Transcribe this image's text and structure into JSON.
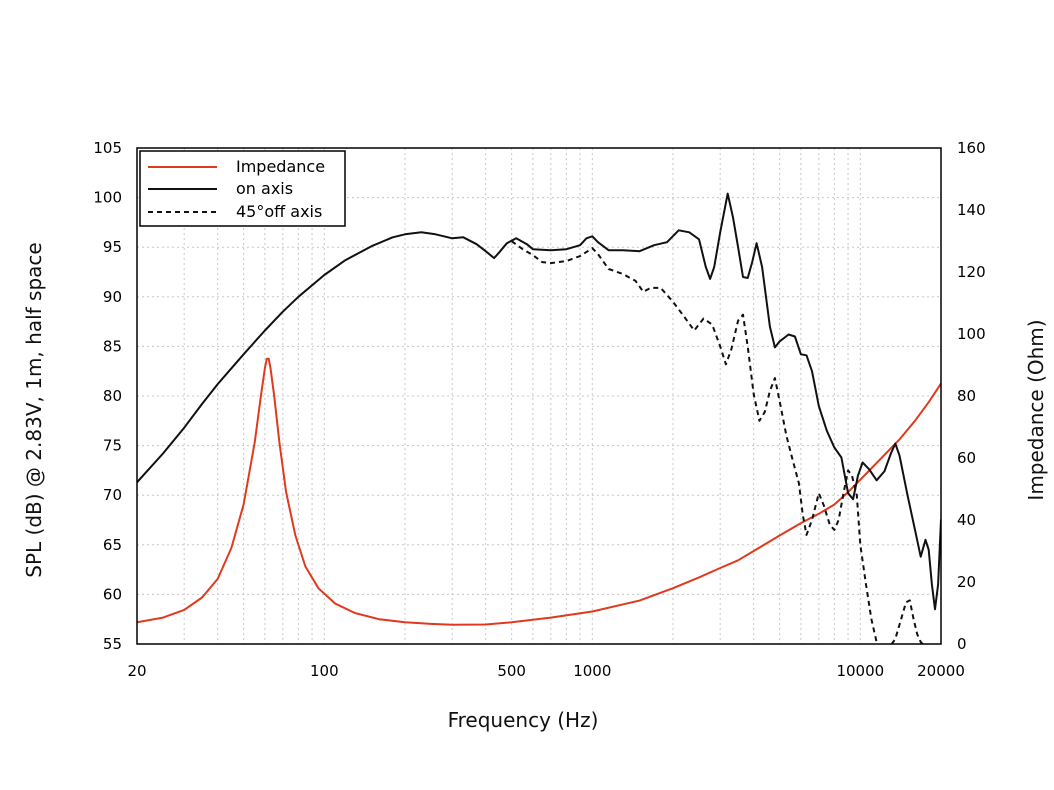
{
  "chart_data": {
    "type": "line",
    "xlabel": "Frequency (Hz)",
    "ylabel": "SPL (dB) @ 2.83V, 1m, half space",
    "y2label": "Impedance (Ohm)",
    "xscale": "log",
    "xlim": [
      20,
      20000
    ],
    "ylim": [
      55,
      105
    ],
    "y2lim": [
      0,
      160
    ],
    "x_ticks": [
      20,
      100,
      500,
      1000,
      10000,
      20000
    ],
    "x_tick_labels": [
      "20",
      "100",
      "500",
      "1000",
      "10000",
      "20000"
    ],
    "y_ticks": [
      55,
      60,
      65,
      70,
      75,
      80,
      85,
      90,
      95,
      100,
      105
    ],
    "y_tick_labels": [
      "55",
      "60",
      "65",
      "70",
      "75",
      "80",
      "85",
      "90",
      "95",
      "100",
      "105"
    ],
    "y2_ticks": [
      0,
      20,
      40,
      60,
      80,
      100,
      120,
      140,
      160
    ],
    "y2_tick_labels": [
      "0",
      "20",
      "40",
      "60",
      "80",
      "100",
      "120",
      "140",
      "160"
    ],
    "grid": true,
    "legend_position": "top-left",
    "series": [
      {
        "name": "Impedance",
        "axis": "right",
        "color": "#e03a1e",
        "style": "solid",
        "points": [
          [
            20,
            7
          ],
          [
            25,
            8.5
          ],
          [
            30,
            11
          ],
          [
            35,
            15
          ],
          [
            40,
            21
          ],
          [
            45,
            31
          ],
          [
            50,
            45
          ],
          [
            55,
            65
          ],
          [
            58,
            80
          ],
          [
            60,
            89
          ],
          [
            61,
            92
          ],
          [
            62,
            92
          ],
          [
            63,
            89
          ],
          [
            65,
            80
          ],
          [
            68,
            65
          ],
          [
            72,
            49
          ],
          [
            78,
            35
          ],
          [
            85,
            25
          ],
          [
            95,
            18
          ],
          [
            110,
            13
          ],
          [
            130,
            10
          ],
          [
            160,
            8
          ],
          [
            200,
            7
          ],
          [
            250,
            6.5
          ],
          [
            300,
            6.2
          ],
          [
            400,
            6.3
          ],
          [
            500,
            7
          ],
          [
            700,
            8.5
          ],
          [
            1000,
            10.5
          ],
          [
            1500,
            14
          ],
          [
            2000,
            18
          ],
          [
            2500,
            21.5
          ],
          [
            3000,
            24.5
          ],
          [
            3500,
            27
          ],
          [
            4000,
            30
          ],
          [
            5000,
            35
          ],
          [
            6000,
            39
          ],
          [
            7000,
            42
          ],
          [
            8000,
            45
          ],
          [
            9000,
            49
          ],
          [
            10000,
            53
          ],
          [
            12000,
            60
          ],
          [
            14000,
            66
          ],
          [
            16000,
            72
          ],
          [
            18000,
            78
          ],
          [
            20000,
            84
          ]
        ]
      },
      {
        "name": "on axis",
        "axis": "left",
        "color": "#111111",
        "style": "solid",
        "points": [
          [
            20,
            71.3
          ],
          [
            25,
            74.2
          ],
          [
            30,
            76.8
          ],
          [
            35,
            79.2
          ],
          [
            40,
            81.2
          ],
          [
            50,
            84.2
          ],
          [
            60,
            86.6
          ],
          [
            70,
            88.5
          ],
          [
            80,
            90
          ],
          [
            100,
            92.2
          ],
          [
            120,
            93.7
          ],
          [
            150,
            95.1
          ],
          [
            180,
            96
          ],
          [
            200,
            96.3
          ],
          [
            230,
            96.5
          ],
          [
            260,
            96.3
          ],
          [
            300,
            95.9
          ],
          [
            330,
            96
          ],
          [
            370,
            95.3
          ],
          [
            400,
            94.6
          ],
          [
            430,
            93.9
          ],
          [
            450,
            94.5
          ],
          [
            480,
            95.4
          ],
          [
            520,
            95.9
          ],
          [
            570,
            95.3
          ],
          [
            600,
            94.8
          ],
          [
            700,
            94.7
          ],
          [
            800,
            94.8
          ],
          [
            900,
            95.2
          ],
          [
            950,
            95.9
          ],
          [
            1000,
            96.1
          ],
          [
            1050,
            95.5
          ],
          [
            1150,
            94.7
          ],
          [
            1300,
            94.7
          ],
          [
            1500,
            94.6
          ],
          [
            1700,
            95.2
          ],
          [
            1900,
            95.5
          ],
          [
            2100,
            96.7
          ],
          [
            2300,
            96.5
          ],
          [
            2500,
            95.8
          ],
          [
            2650,
            93
          ],
          [
            2750,
            91.8
          ],
          [
            2850,
            93
          ],
          [
            3000,
            96.5
          ],
          [
            3200,
            100.4
          ],
          [
            3350,
            98
          ],
          [
            3500,
            95
          ],
          [
            3650,
            92
          ],
          [
            3800,
            91.9
          ],
          [
            3950,
            93.5
          ],
          [
            4100,
            95.4
          ],
          [
            4300,
            93
          ],
          [
            4600,
            87
          ],
          [
            4800,
            84.9
          ],
          [
            5000,
            85.5
          ],
          [
            5400,
            86.2
          ],
          [
            5700,
            86
          ],
          [
            6000,
            84.2
          ],
          [
            6300,
            84.1
          ],
          [
            6600,
            82.5
          ],
          [
            7000,
            79
          ],
          [
            7500,
            76.5
          ],
          [
            8000,
            74.8
          ],
          [
            8500,
            73.8
          ],
          [
            9000,
            70.2
          ],
          [
            9400,
            69.6
          ],
          [
            9800,
            72
          ],
          [
            10200,
            73.3
          ],
          [
            10800,
            72.6
          ],
          [
            11500,
            71.5
          ],
          [
            12300,
            72.4
          ],
          [
            13000,
            74.2
          ],
          [
            13500,
            75.2
          ],
          [
            14000,
            74
          ],
          [
            15000,
            70
          ],
          [
            16000,
            66.5
          ],
          [
            16800,
            63.8
          ],
          [
            17500,
            65.5
          ],
          [
            18000,
            64.5
          ],
          [
            18500,
            61
          ],
          [
            19000,
            58.5
          ],
          [
            19500,
            61
          ],
          [
            20000,
            67.5
          ]
        ]
      },
      {
        "name": "45°off axis",
        "axis": "left",
        "color": "#111111",
        "style": "dashed",
        "points": [
          [
            500,
            95.6
          ],
          [
            550,
            94.8
          ],
          [
            600,
            94.2
          ],
          [
            650,
            93.5
          ],
          [
            700,
            93.4
          ],
          [
            800,
            93.6
          ],
          [
            900,
            94.1
          ],
          [
            1000,
            94.9
          ],
          [
            1050,
            94.3
          ],
          [
            1150,
            92.8
          ],
          [
            1300,
            92.3
          ],
          [
            1450,
            91.6
          ],
          [
            1550,
            90.5
          ],
          [
            1650,
            90.9
          ],
          [
            1800,
            90.9
          ],
          [
            2000,
            89.5
          ],
          [
            2200,
            88
          ],
          [
            2400,
            86.6
          ],
          [
            2600,
            87.8
          ],
          [
            2800,
            87.2
          ],
          [
            3000,
            85
          ],
          [
            3150,
            83.2
          ],
          [
            3300,
            84.7
          ],
          [
            3500,
            87.6
          ],
          [
            3650,
            88.2
          ],
          [
            3800,
            85
          ],
          [
            4000,
            80.2
          ],
          [
            4200,
            77.5
          ],
          [
            4400,
            78.4
          ],
          [
            4600,
            80.5
          ],
          [
            4800,
            81.8
          ],
          [
            5000,
            79.5
          ],
          [
            5300,
            76
          ],
          [
            5600,
            73.5
          ],
          [
            5900,
            71.2
          ],
          [
            6100,
            68
          ],
          [
            6300,
            66
          ],
          [
            6600,
            67.5
          ],
          [
            7000,
            70.2
          ],
          [
            7300,
            69
          ],
          [
            7700,
            67
          ],
          [
            8000,
            66.5
          ],
          [
            8300,
            67.5
          ],
          [
            8700,
            70.5
          ],
          [
            9000,
            72.5
          ],
          [
            9300,
            72
          ],
          [
            9700,
            70
          ],
          [
            10000,
            65
          ],
          [
            10500,
            61
          ],
          [
            11000,
            57.5
          ],
          [
            11500,
            55.2
          ],
          [
            12000,
            54.5
          ],
          [
            12700,
            54.5
          ],
          [
            13500,
            55.5
          ],
          [
            14200,
            57.5
          ],
          [
            14800,
            59.2
          ],
          [
            15300,
            59.4
          ],
          [
            15800,
            57.5
          ],
          [
            16300,
            56
          ],
          [
            16800,
            55.2
          ],
          [
            17500,
            54.7
          ],
          [
            18500,
            54.6
          ],
          [
            20000,
            54.6
          ]
        ]
      }
    ]
  }
}
